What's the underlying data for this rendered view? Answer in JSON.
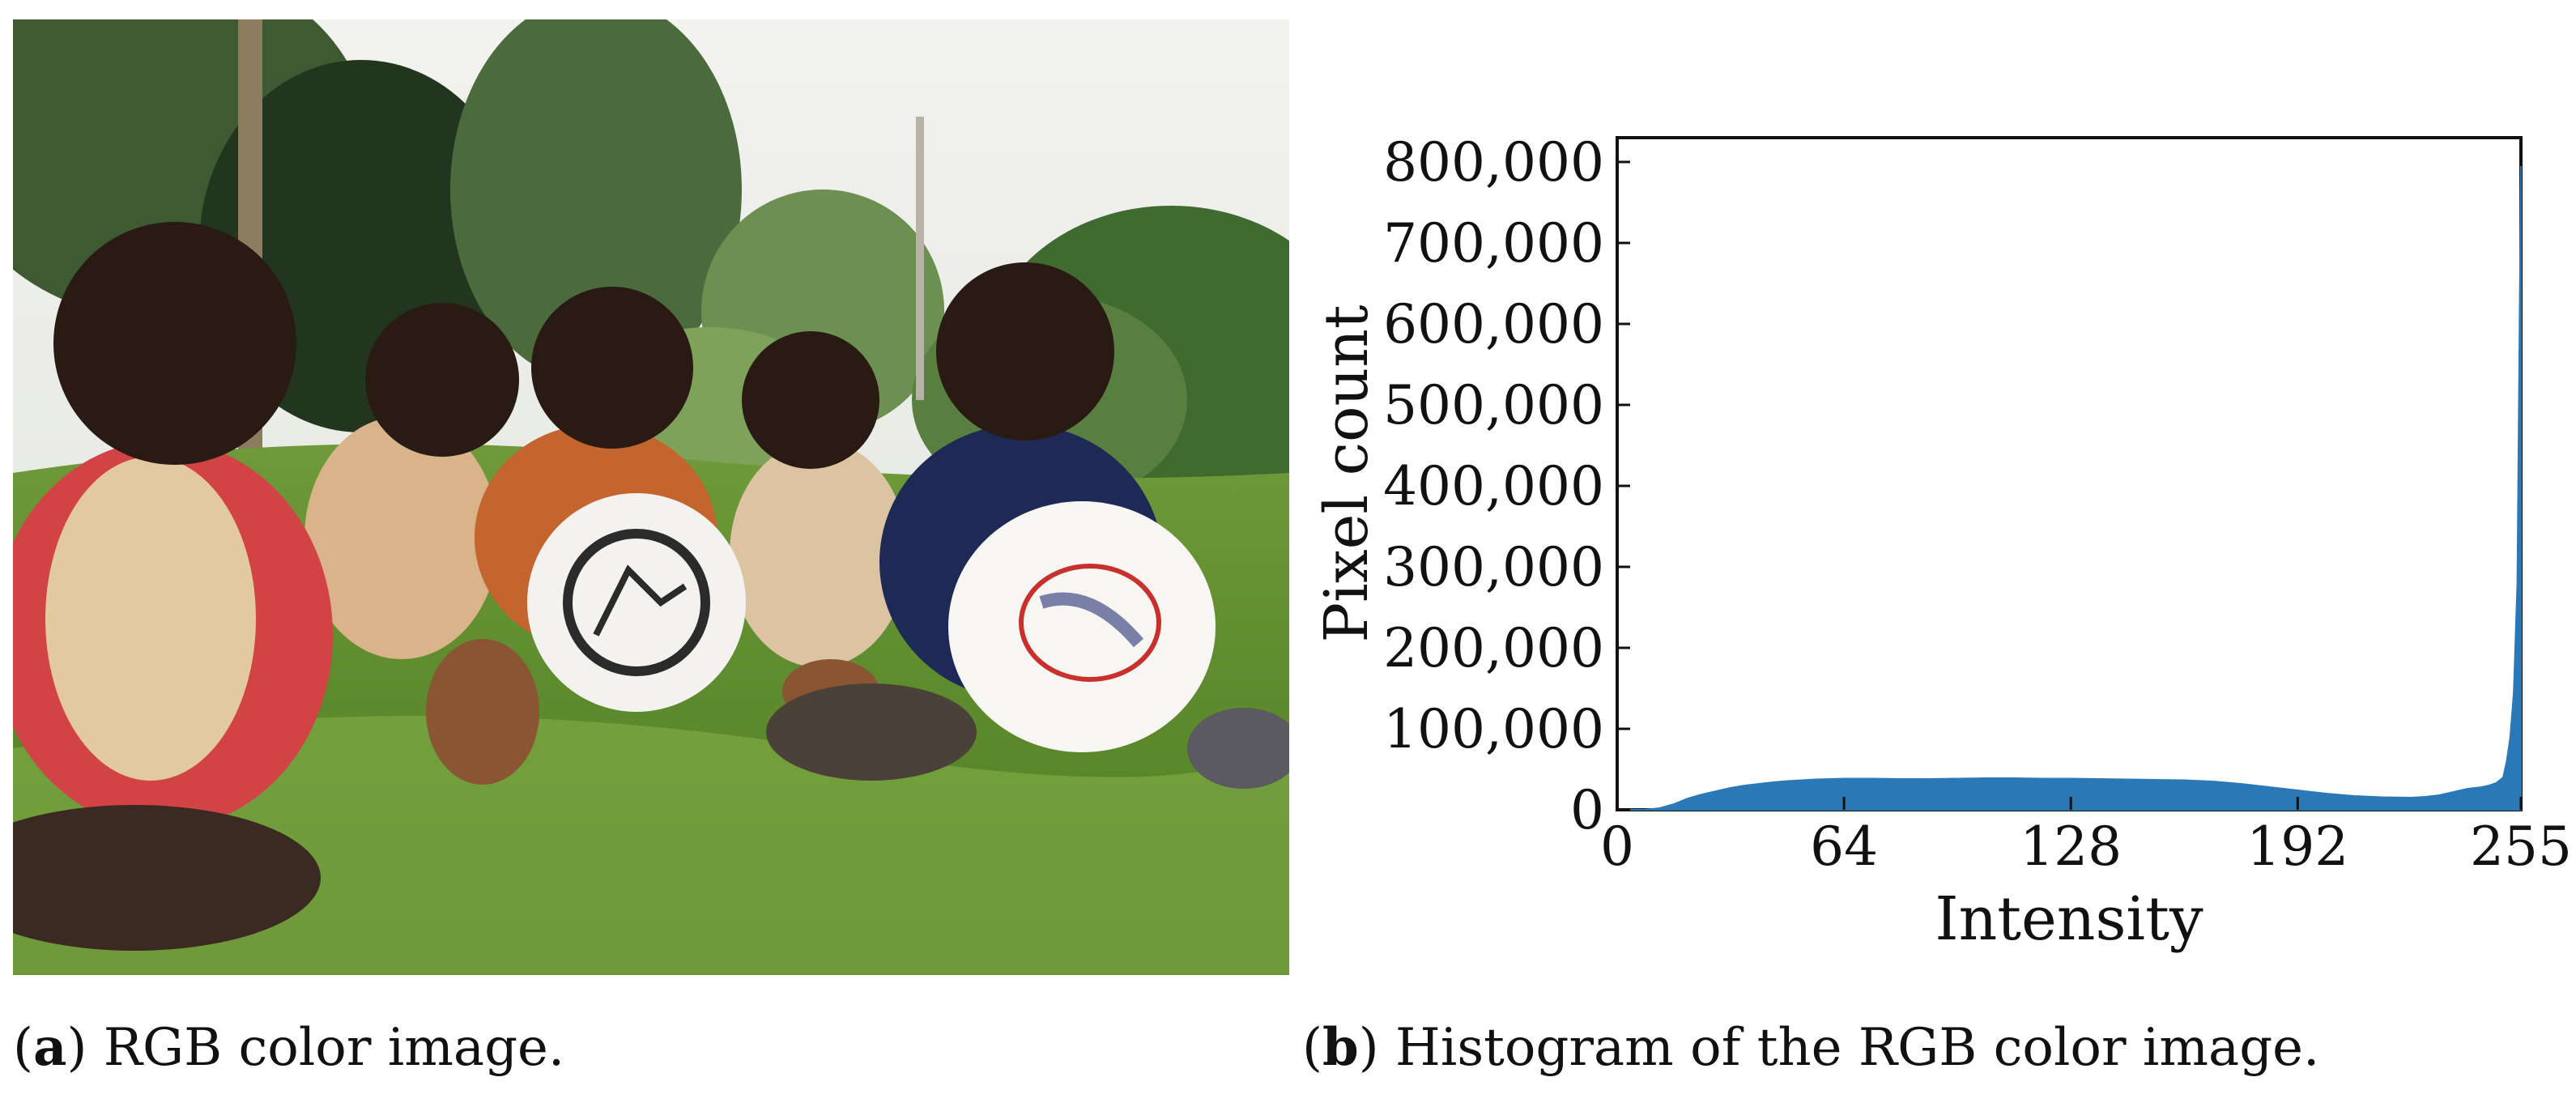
{
  "captions": {
    "a": {
      "letter": "a",
      "text": ") RGB color image."
    },
    "b": {
      "letter": "b",
      "text": ") Histogram of the RGB color image."
    }
  },
  "photo": {
    "kind": "photograph",
    "subject": "children-with-frisbees-on-grass"
  },
  "colors": {
    "histogram": "#2b78b7",
    "axis": "#111111"
  },
  "chart_data": {
    "type": "area",
    "title": "",
    "xlabel": "Intensity",
    "ylabel": "Pixel count",
    "xlim": [
      0,
      255
    ],
    "ylim": [
      0,
      830000
    ],
    "xticks": [
      0,
      64,
      128,
      192,
      255
    ],
    "yticks": [
      0,
      100000,
      200000,
      300000,
      400000,
      500000,
      600000,
      700000,
      800000
    ],
    "ytick_labels": [
      "0",
      "100,000",
      "200,000",
      "300,000",
      "400,000",
      "500,000",
      "600,000",
      "700,000",
      "800,000"
    ],
    "grid": false,
    "x": [
      0,
      8,
      12,
      16,
      20,
      24,
      28,
      32,
      36,
      40,
      44,
      48,
      52,
      56,
      60,
      64,
      72,
      80,
      88,
      96,
      104,
      112,
      120,
      128,
      136,
      144,
      152,
      160,
      168,
      176,
      184,
      192,
      200,
      208,
      216,
      224,
      228,
      232,
      236,
      240,
      244,
      246,
      248,
      250,
      251,
      252,
      253,
      254,
      255
    ],
    "values": [
      0,
      300,
      2000,
      7000,
      14000,
      19000,
      23000,
      27000,
      30000,
      32000,
      34000,
      35500,
      36500,
      37500,
      38000,
      38500,
      38500,
      38000,
      38000,
      38500,
      39000,
      39000,
      38500,
      38500,
      38000,
      37500,
      37000,
      36500,
      35000,
      32000,
      28000,
      24000,
      20000,
      17000,
      15500,
      15000,
      16000,
      18000,
      22000,
      26000,
      28000,
      30000,
      33000,
      40000,
      60000,
      90000,
      145000,
      280000,
      795000
    ]
  }
}
